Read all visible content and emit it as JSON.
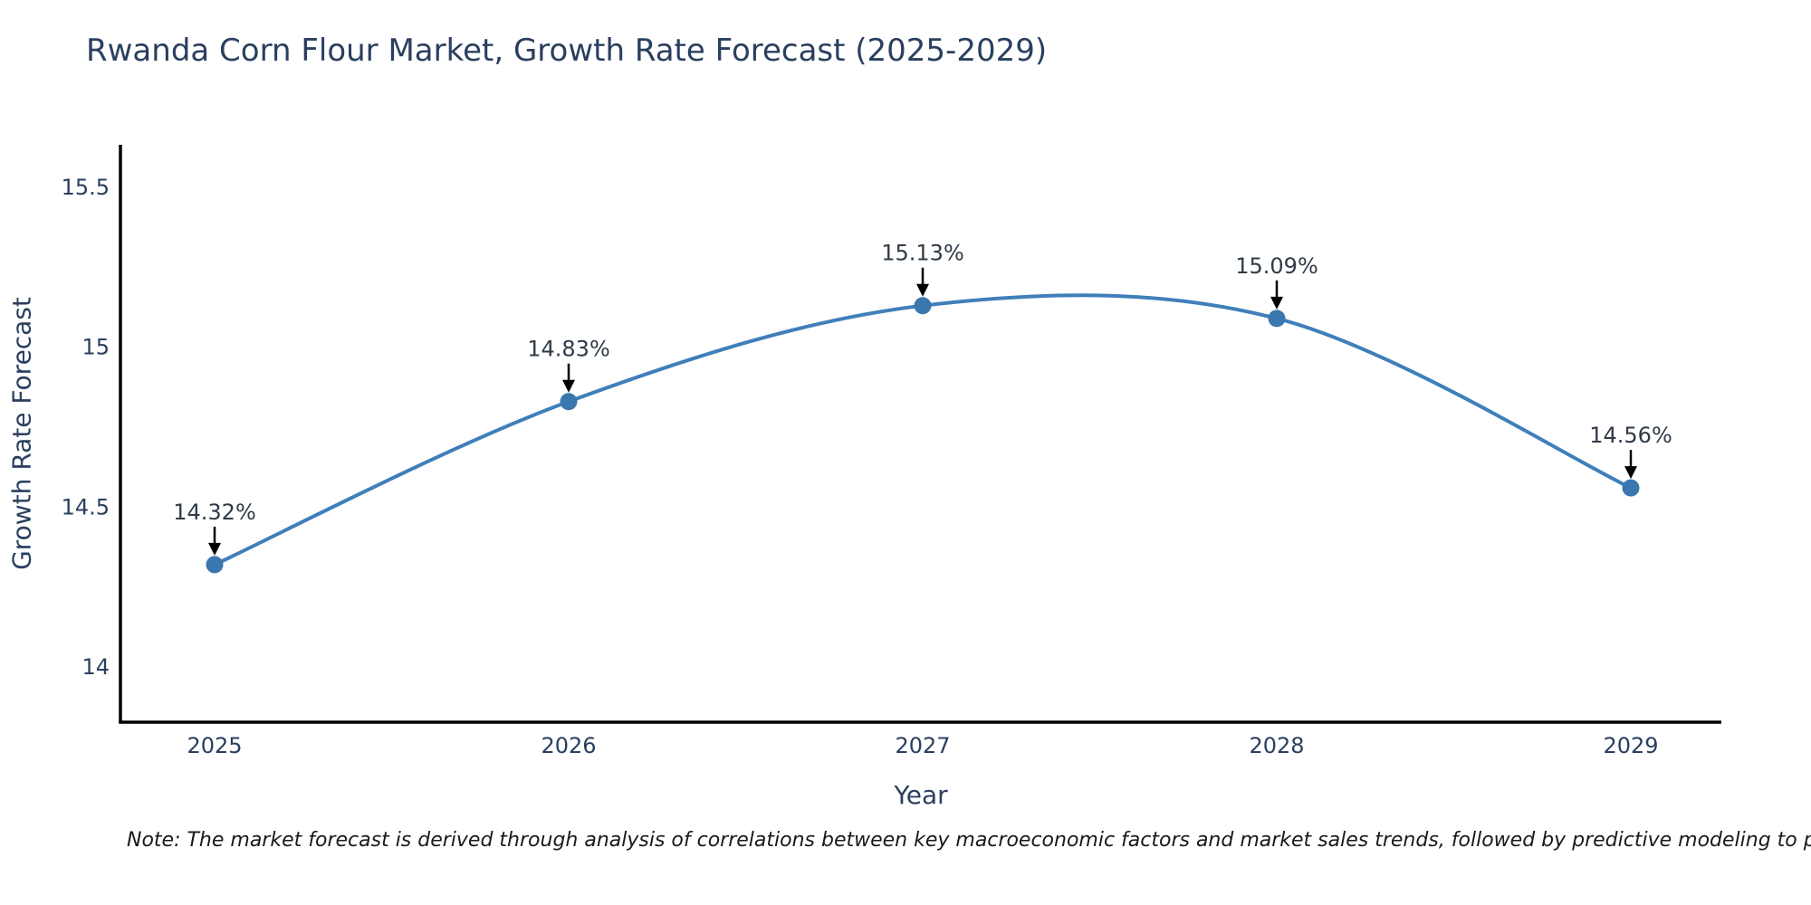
{
  "title": "Rwanda Corn Flour Market, Growth Rate Forecast (2025-2029)",
  "note": "Note: The market forecast is derived through analysis of correlations between key macroeconomic factors and market sales trends, followed by predictive modeling to project future sal",
  "chart_data": {
    "type": "line",
    "title": "Rwanda Corn Flour Market, Growth Rate Forecast (2025-2029)",
    "xlabel": "Year",
    "ylabel": "Growth Rate Forecast",
    "x": [
      2025,
      2026,
      2027,
      2028,
      2029
    ],
    "series": [
      {
        "name": "Growth Rate Forecast",
        "values": [
          14.32,
          14.83,
          15.13,
          15.09,
          14.56
        ]
      }
    ],
    "point_labels": [
      "14.32%",
      "14.83%",
      "15.13%",
      "15.09%",
      "14.56%"
    ],
    "yticks": [
      14,
      14.5,
      15,
      15.5
    ],
    "ylim": [
      13.79,
      15.63
    ],
    "line_shape": "spline",
    "grid": false,
    "legend_position": "none",
    "colors": {
      "line": "#3f7fba",
      "marker": "#3a77ae",
      "annotation_arrow": "#000000",
      "axis_line": "#000000",
      "text": "#2a3f5f"
    }
  }
}
